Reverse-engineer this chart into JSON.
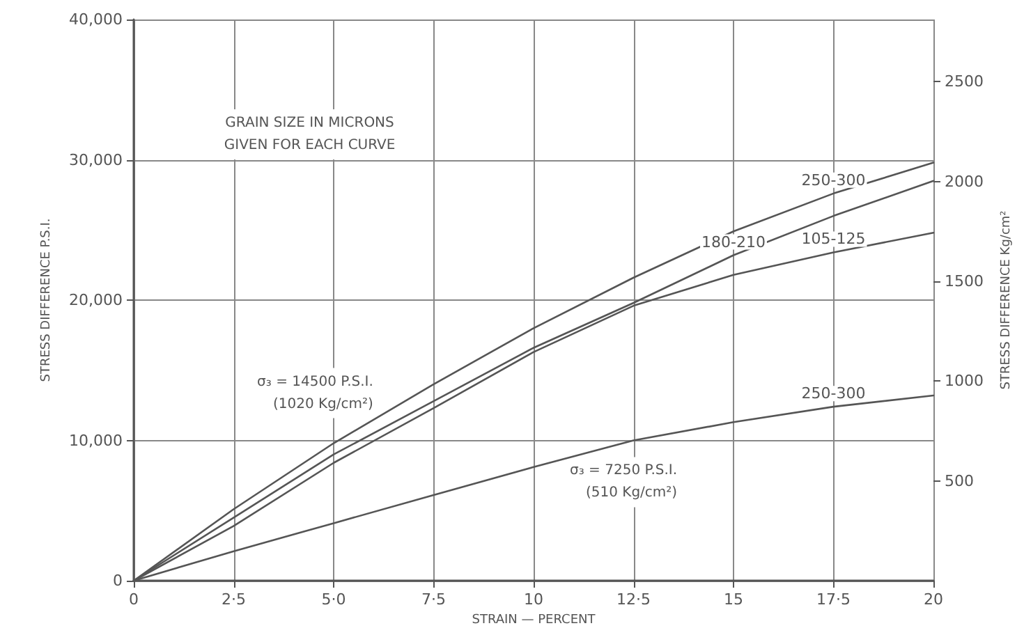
{
  "chart_data": {
    "type": "line",
    "xlabel": "STRAIN — PERCENT",
    "ylabel": "STRESS DIFFERENCE P.S.I.",
    "y2label": "STRESS DIFFERENCE Kg/cm²",
    "x": [
      0,
      2.5,
      5,
      7.5,
      10,
      12.5,
      15,
      17.5,
      20
    ],
    "series": [
      {
        "name": "250-300",
        "color": "#555555",
        "values": [
          0,
          5100,
          9800,
          14000,
          18000,
          21600,
          24900,
          27600,
          29800
        ]
      },
      {
        "name": "180-210",
        "color": "#555555",
        "values": [
          0,
          4500,
          9000,
          12800,
          16600,
          19800,
          23200,
          26000,
          28500
        ]
      },
      {
        "name": "105-125",
        "color": "#555555",
        "values": [
          0,
          3900,
          8400,
          12300,
          16300,
          19600,
          21800,
          23400,
          24800
        ]
      },
      {
        "name": "250-300",
        "color": "#555555",
        "values": [
          0,
          2100,
          4100,
          6100,
          8100,
          10000,
          11300,
          12400,
          13200
        ]
      }
    ],
    "xlim": [
      0,
      20
    ],
    "xticks": [
      0,
      {
        "value": 2.5,
        "label": "2·5"
      },
      {
        "value": 5,
        "label": "5·0"
      },
      {
        "value": 7.5,
        "label": "7·5"
      },
      10,
      {
        "value": 12.5,
        "label": "12·5"
      },
      15,
      {
        "value": 17.5,
        "label": "17·5"
      },
      20
    ],
    "ylim": [
      0,
      40000
    ],
    "yticks": [
      0,
      {
        "value": 10000,
        "label": "10,000"
      },
      {
        "value": 20000,
        "label": "20,000"
      },
      {
        "value": 30000,
        "label": "30,000"
      },
      {
        "value": 40000,
        "label": "40,000"
      }
    ],
    "y2lim": [
      0,
      2812
    ],
    "y2ticks": [
      500,
      1000,
      1500,
      2000,
      2500
    ],
    "annotations": [
      "GRAIN SIZE IN MICRONS\nGIVEN FOR EACH CURVE",
      {
        "text": "σ₃ = 14500 P.S.I.\n(1020 Kg/cm²)",
        "x": 6.2,
        "y": 10000
      },
      {
        "text": "σ₃ = 7250 P.S.I.\n(510 Kg/cm²)",
        "x": 13.8,
        "y": 10200
      }
    ],
    "grid": true,
    "legend": false,
    "marker": "none",
    "line_style": "solid"
  }
}
